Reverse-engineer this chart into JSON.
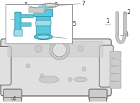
{
  "bg": "#ffffff",
  "lc": "#666666",
  "bc": "#5bc8dc",
  "bdc": "#2a90aa",
  "blight": "#a0dde8",
  "gray1": "#e0e0e0",
  "gray2": "#cccccc",
  "gray3": "#aaaaaa",
  "gray4": "#888888",
  "fs": 5.5
}
